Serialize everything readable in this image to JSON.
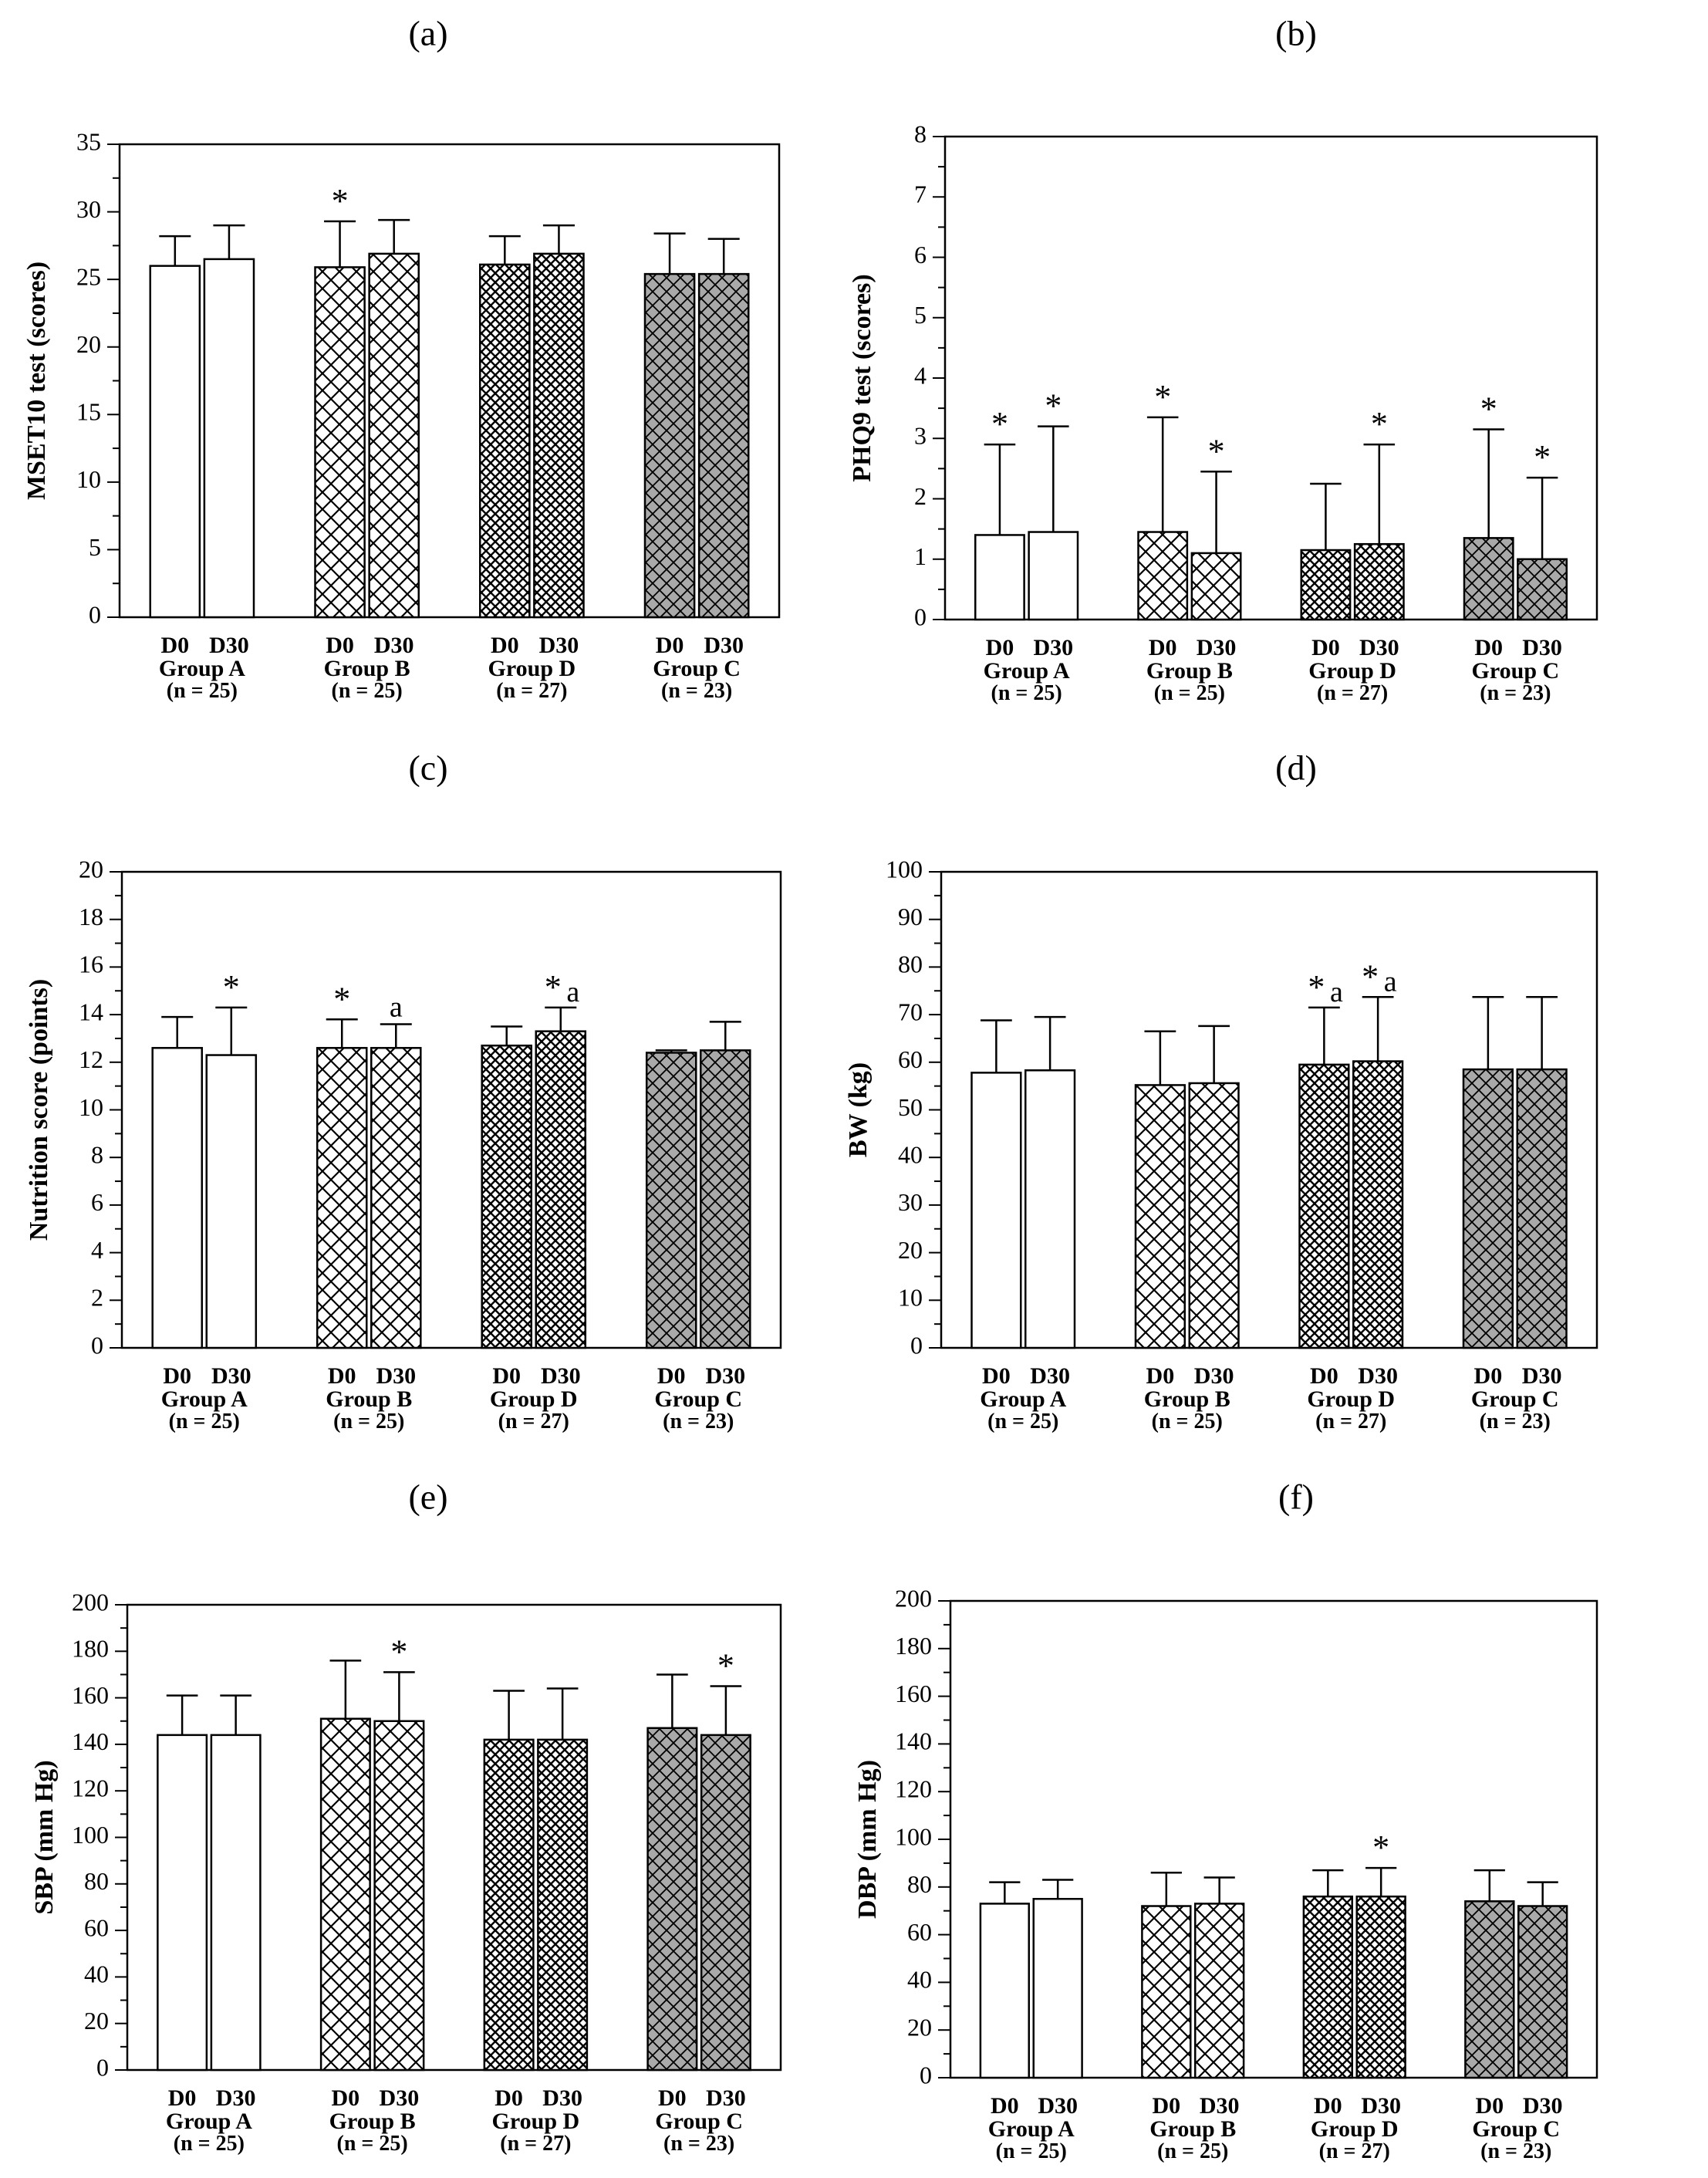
{
  "chart_data": [
    {
      "type": "bar",
      "panel_label": "(a)",
      "ylabel": "MSET10 test (scores)",
      "ylim": [
        0,
        35
      ],
      "yticks": [
        0,
        5,
        10,
        15,
        20,
        25,
        30,
        35
      ],
      "series_labels": [
        "D0",
        "D30"
      ],
      "groups": [
        {
          "name": "Group A",
          "n": "(n = 25)",
          "pattern": "white",
          "values": [
            26.0,
            26.5
          ],
          "errors": [
            2.2,
            2.5
          ],
          "annotations": [
            "",
            ""
          ]
        },
        {
          "name": "Group B",
          "n": "(n = 25)",
          "pattern": "coarse",
          "values": [
            25.9,
            26.9
          ],
          "errors": [
            3.4,
            2.5
          ],
          "annotations": [
            "*",
            ""
          ]
        },
        {
          "name": "Group D",
          "n": "(n = 27)",
          "pattern": "fine",
          "values": [
            26.1,
            26.9
          ],
          "errors": [
            2.1,
            2.1
          ],
          "annotations": [
            "",
            ""
          ]
        },
        {
          "name": "Group C",
          "n": "(n = 23)",
          "pattern": "gray",
          "values": [
            25.4,
            25.4
          ],
          "errors": [
            3.0,
            2.6
          ],
          "annotations": [
            "",
            ""
          ]
        }
      ]
    },
    {
      "type": "bar",
      "panel_label": "(b)",
      "ylabel": "PHQ9 test (scores)",
      "ylim": [
        0,
        8
      ],
      "yticks": [
        0,
        1,
        2,
        3,
        4,
        5,
        6,
        7,
        8
      ],
      "series_labels": [
        "D0",
        "D30"
      ],
      "groups": [
        {
          "name": "Group A",
          "n": "(n = 25)",
          "pattern": "white",
          "values": [
            1.4,
            1.45
          ],
          "errors": [
            1.5,
            1.75
          ],
          "annotations": [
            "*",
            "*"
          ]
        },
        {
          "name": "Group B",
          "n": "(n = 25)",
          "pattern": "coarse",
          "values": [
            1.45,
            1.1
          ],
          "errors": [
            1.9,
            1.35
          ],
          "annotations": [
            "*",
            "*"
          ]
        },
        {
          "name": "Group D",
          "n": "(n = 27)",
          "pattern": "fine",
          "values": [
            1.15,
            1.25
          ],
          "errors": [
            1.1,
            1.65
          ],
          "annotations": [
            "",
            "*"
          ]
        },
        {
          "name": "Group C",
          "n": "(n = 23)",
          "pattern": "gray",
          "values": [
            1.35,
            1.0
          ],
          "errors": [
            1.8,
            1.35
          ],
          "annotations": [
            "*",
            "*"
          ]
        }
      ]
    },
    {
      "type": "bar",
      "panel_label": "(c)",
      "ylabel": "Nutrition score (points)",
      "ylim": [
        0,
        20
      ],
      "yticks": [
        0,
        2,
        4,
        6,
        8,
        10,
        12,
        14,
        16,
        18,
        20
      ],
      "series_labels": [
        "D0",
        "D30"
      ],
      "groups": [
        {
          "name": "Group A",
          "n": "(n = 25)",
          "pattern": "white",
          "values": [
            12.6,
            12.3
          ],
          "errors": [
            1.3,
            2.0
          ],
          "annotations": [
            "",
            "*"
          ]
        },
        {
          "name": "Group B",
          "n": "(n = 25)",
          "pattern": "coarse",
          "values": [
            12.6,
            12.6
          ],
          "errors": [
            1.2,
            1.0
          ],
          "annotations": [
            "*",
            "a"
          ]
        },
        {
          "name": "Group D",
          "n": "(n = 27)",
          "pattern": "fine",
          "values": [
            12.7,
            13.3
          ],
          "errors": [
            0.8,
            1.0
          ],
          "annotations": [
            "",
            "*a"
          ]
        },
        {
          "name": "Group C",
          "n": "(n = 23)",
          "pattern": "gray",
          "values": [
            12.4,
            12.5
          ],
          "errors": [
            0.1,
            1.2
          ],
          "annotations": [
            "",
            ""
          ]
        }
      ]
    },
    {
      "type": "bar",
      "panel_label": "(d)",
      "ylabel": "BW (kg)",
      "ylim": [
        0,
        100
      ],
      "yticks": [
        0,
        10,
        20,
        30,
        40,
        50,
        60,
        70,
        80,
        90,
        100
      ],
      "series_labels": [
        "D0",
        "D30"
      ],
      "groups": [
        {
          "name": "Group A",
          "n": "(n = 25)",
          "pattern": "white",
          "values": [
            57.8,
            58.3
          ],
          "errors": [
            11.0,
            11.2
          ],
          "annotations": [
            "",
            ""
          ]
        },
        {
          "name": "Group B",
          "n": "(n = 25)",
          "pattern": "coarse",
          "values": [
            55.2,
            55.6
          ],
          "errors": [
            11.3,
            12.0
          ],
          "annotations": [
            "",
            ""
          ]
        },
        {
          "name": "Group D",
          "n": "(n = 27)",
          "pattern": "fine",
          "values": [
            59.5,
            60.2
          ],
          "errors": [
            12.0,
            13.5
          ],
          "annotations": [
            "*a",
            "*a"
          ]
        },
        {
          "name": "Group C",
          "n": "(n = 23)",
          "pattern": "gray",
          "values": [
            58.5,
            58.5
          ],
          "errors": [
            15.2,
            15.2
          ],
          "annotations": [
            "",
            ""
          ]
        }
      ]
    },
    {
      "type": "bar",
      "panel_label": "(e)",
      "ylabel": "SBP (mm Hg)",
      "ylim": [
        0,
        200
      ],
      "yticks": [
        0,
        20,
        40,
        60,
        80,
        100,
        120,
        140,
        160,
        180,
        200
      ],
      "series_labels": [
        "D0",
        "D30"
      ],
      "groups": [
        {
          "name": "Group A",
          "n": "(n = 25)",
          "pattern": "white",
          "values": [
            144,
            144
          ],
          "errors": [
            17,
            17
          ],
          "annotations": [
            "",
            ""
          ]
        },
        {
          "name": "Group B",
          "n": "(n = 25)",
          "pattern": "coarse",
          "values": [
            151,
            150
          ],
          "errors": [
            25,
            21
          ],
          "annotations": [
            "",
            "*"
          ]
        },
        {
          "name": "Group D",
          "n": "(n = 27)",
          "pattern": "fine",
          "values": [
            142,
            142
          ],
          "errors": [
            21,
            22
          ],
          "annotations": [
            "",
            ""
          ]
        },
        {
          "name": "Group C",
          "n": "(n = 23)",
          "pattern": "gray",
          "values": [
            147,
            144
          ],
          "errors": [
            23,
            21
          ],
          "annotations": [
            "",
            "*"
          ]
        }
      ]
    },
    {
      "type": "bar",
      "panel_label": "(f)",
      "ylabel": "DBP (mm Hg)",
      "ylim": [
        0,
        200
      ],
      "yticks": [
        0,
        20,
        40,
        60,
        80,
        100,
        120,
        140,
        160,
        180,
        200
      ],
      "series_labels": [
        "D0",
        "D30"
      ],
      "groups": [
        {
          "name": "Group A",
          "n": "(n = 25)",
          "pattern": "white",
          "values": [
            73,
            75
          ],
          "errors": [
            9,
            8
          ],
          "annotations": [
            "",
            ""
          ]
        },
        {
          "name": "Group B",
          "n": "(n = 25)",
          "pattern": "coarse",
          "values": [
            72,
            73
          ],
          "errors": [
            14,
            11
          ],
          "annotations": [
            "",
            ""
          ]
        },
        {
          "name": "Group D",
          "n": "(n = 27)",
          "pattern": "fine",
          "values": [
            76,
            76
          ],
          "errors": [
            11,
            12
          ],
          "annotations": [
            "",
            "*"
          ]
        },
        {
          "name": "Group C",
          "n": "(n = 23)",
          "pattern": "gray",
          "values": [
            74,
            72
          ],
          "errors": [
            13,
            10
          ],
          "annotations": [
            "",
            ""
          ]
        }
      ]
    }
  ]
}
